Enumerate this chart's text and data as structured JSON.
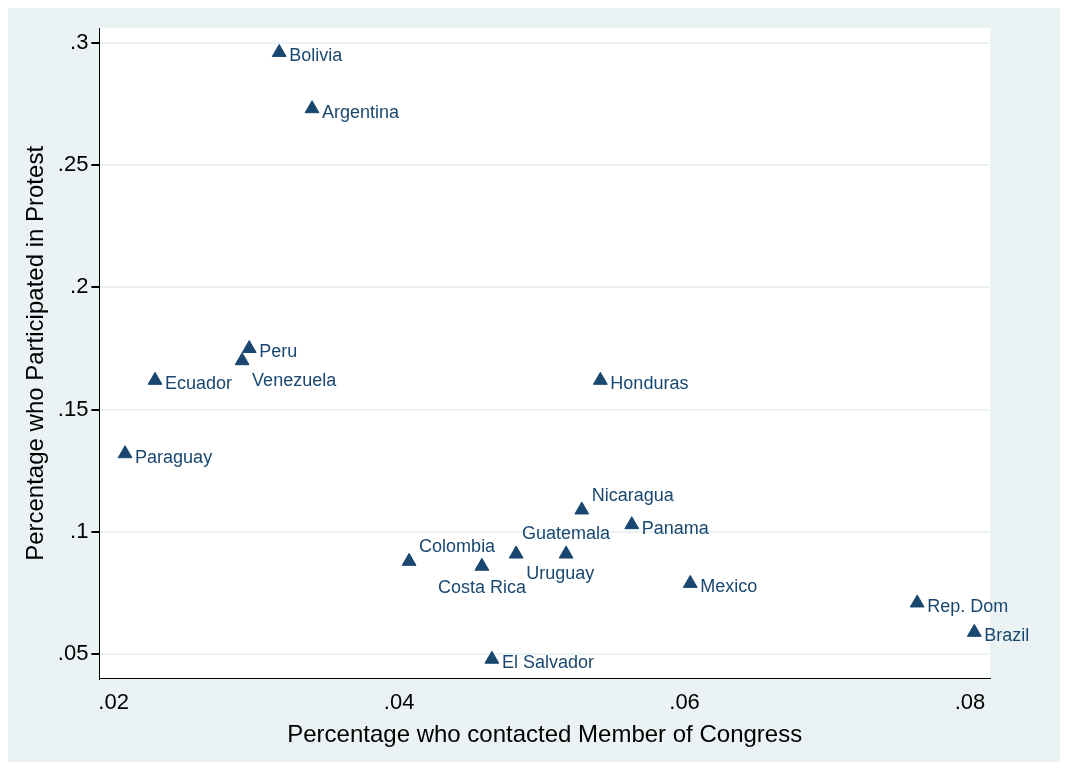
{
  "chart_data": {
    "type": "scatter",
    "xlabel": "Percentage who contacted Member of Congress",
    "ylabel": "Percentage who Participated in Protest",
    "x": [
      0.0316,
      0.0339,
      0.0295,
      0.029,
      0.0229,
      0.0208,
      0.0541,
      0.0528,
      0.0563,
      0.0482,
      0.0517,
      0.0407,
      0.0458,
      0.0604,
      0.0465,
      0.0763,
      0.0803
    ],
    "series": [
      {
        "color": "#1a476f",
        "values": [
          0.296,
          0.273,
          0.175,
          0.17,
          0.162,
          0.132,
          0.162,
          0.109,
          0.103,
          0.091,
          0.091,
          0.088,
          0.086,
          0.079,
          0.048,
          0.071,
          0.059
        ]
      }
    ],
    "annotations": [
      {
        "text": "Bolivia",
        "x": 0.0316,
        "y": 0.296
      },
      {
        "text": "Argentina",
        "x": 0.0339,
        "y": 0.273
      },
      {
        "text": "Peru",
        "x": 0.0295,
        "y": 0.175
      },
      {
        "text": "Venezuela",
        "x": 0.029,
        "y": 0.17
      },
      {
        "text": "Ecuador",
        "x": 0.0229,
        "y": 0.162
      },
      {
        "text": "Paraguay",
        "x": 0.0208,
        "y": 0.132
      },
      {
        "text": "Honduras",
        "x": 0.0541,
        "y": 0.162
      },
      {
        "text": "Nicaragua",
        "x": 0.0528,
        "y": 0.109
      },
      {
        "text": "Panama",
        "x": 0.0563,
        "y": 0.103
      },
      {
        "text": "Uruguay",
        "x": 0.0482,
        "y": 0.091
      },
      {
        "text": "Guatemala",
        "x": 0.0517,
        "y": 0.091
      },
      {
        "text": "Colombia",
        "x": 0.0407,
        "y": 0.088
      },
      {
        "text": "Costa Rica",
        "x": 0.0458,
        "y": 0.086
      },
      {
        "text": "Mexico",
        "x": 0.0604,
        "y": 0.079
      },
      {
        "text": "El Salvador",
        "x": 0.0465,
        "y": 0.048
      },
      {
        "text": "Rep. Dom",
        "x": 0.0763,
        "y": 0.071
      },
      {
        "text": "Brazil",
        "x": 0.0803,
        "y": 0.059
      }
    ],
    "xlim": [
      0.019,
      0.0814
    ],
    "ylim": [
      0.04,
      0.306
    ],
    "xticks": [
      {
        "value": 0.02,
        "label": ".02"
      },
      {
        "value": 0.04,
        "label": ".04"
      },
      {
        "value": 0.06,
        "label": ".06"
      },
      {
        "value": 0.08,
        "label": ".08"
      }
    ],
    "yticks": [
      {
        "value": 0.05,
        "label": ".05"
      },
      {
        "value": 0.1,
        "label": ".1"
      },
      {
        "value": 0.15,
        "label": ".15"
      },
      {
        "value": 0.2,
        "label": ".2"
      },
      {
        "value": 0.25,
        "label": ".25"
      },
      {
        "value": 0.3,
        "label": ".3"
      }
    ],
    "grid": "y",
    "legend": false,
    "marker": "triangle"
  }
}
